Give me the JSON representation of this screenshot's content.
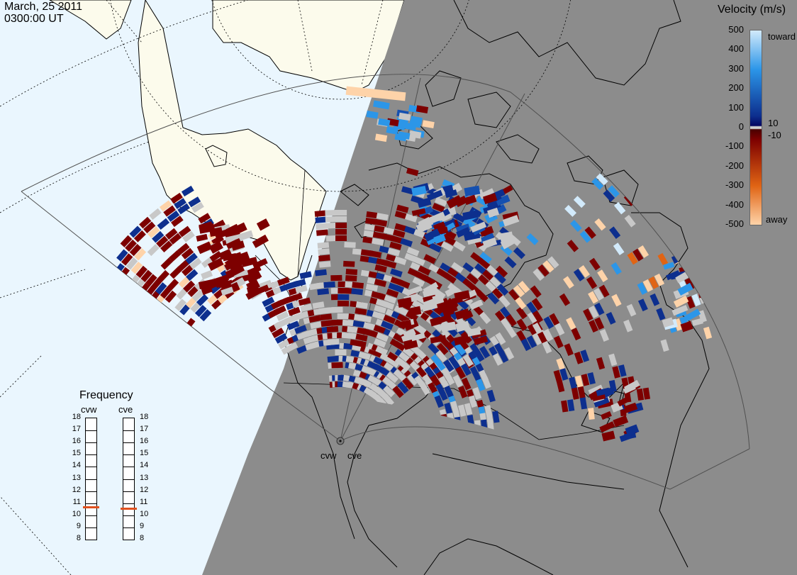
{
  "header": {
    "date": "March, 25 2011",
    "time": "0300:00 UT"
  },
  "legend": {
    "title": "Velocity (m/s)",
    "toward_label": "toward",
    "away_label": "away",
    "ticks": [
      "500",
      "400",
      "300",
      "200",
      "100",
      "10",
      "0",
      "-10",
      "-100",
      "-200",
      "-300",
      "-400",
      "-500"
    ],
    "tick_values": [
      500,
      400,
      300,
      200,
      100,
      10,
      0,
      -10,
      -100,
      -200,
      -300,
      -400,
      -500
    ],
    "colors": {
      "toward_500": "#d2eafb",
      "toward_300": "#2c96e8",
      "toward_100": "#0d2f8e",
      "near_zero": "#d0d0d0",
      "away_100": "#7d0000",
      "away_300": "#e06414",
      "away_500": "#fed3a9"
    },
    "ground_scatter": "#c8c8c8"
  },
  "radars": {
    "west": {
      "code": "cvw",
      "frequency_mhz": 10.7
    },
    "east": {
      "code": "cve",
      "frequency_mhz": 10.6
    }
  },
  "frequency_panel": {
    "title": "Frequency",
    "scale": [
      "18",
      "17",
      "16",
      "15",
      "14",
      "13",
      "12",
      "11",
      "10",
      "9",
      "8"
    ],
    "min": 8,
    "max": 18,
    "indicator_color": "#e0501e"
  },
  "map": {
    "night_color": "#8c8c8c",
    "day_ocean_color": "#eaf6fe",
    "day_land_color": "#fcfbec"
  }
}
